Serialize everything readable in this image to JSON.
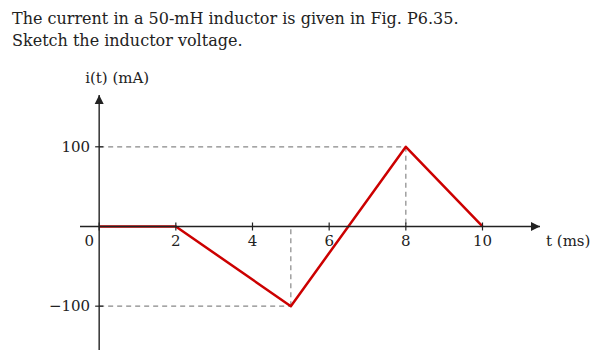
{
  "chart_data": {
    "type": "line",
    "title": "The current in a 50-mH inductor is given in Fig. P6.35.\nSketch the inductor voltage.",
    "xlabel": "t (ms)",
    "ylabel": "i(t) (mA)",
    "x": [
      0,
      2,
      5,
      8,
      10
    ],
    "values": [
      0,
      0,
      -100,
      100,
      0
    ],
    "color": "#cc0000",
    "xlim": [
      -0.5,
      11.5
    ],
    "ylim": [
      -155,
      165
    ],
    "xticks": [
      0,
      2,
      4,
      6,
      8,
      10
    ],
    "yticks": [
      {
        "value": -100,
        "label": "−100"
      },
      100
    ],
    "grid": false
  }
}
